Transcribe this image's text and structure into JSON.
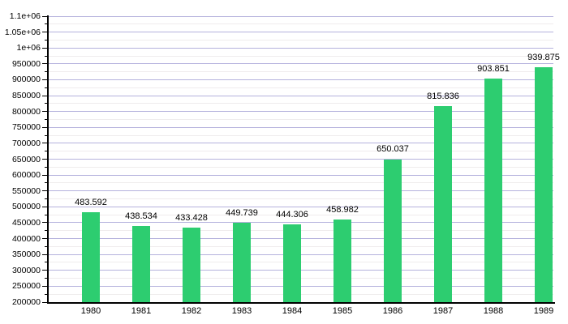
{
  "chart_data": {
    "type": "bar",
    "title": "",
    "xlabel": "",
    "ylabel": "",
    "categories": [
      "1980",
      "1981",
      "1982",
      "1983",
      "1984",
      "1985",
      "1986",
      "1987",
      "1988",
      "1989"
    ],
    "values": [
      483592,
      438534,
      433428,
      449739,
      444306,
      458982,
      650037,
      815836,
      903851,
      939875
    ],
    "bar_labels": [
      "483.592",
      "438.534",
      "433.428",
      "449.739",
      "444.306",
      "458.982",
      "650.037",
      "815.836",
      "903.851",
      "939.875"
    ],
    "ylim": [
      200000,
      1100000
    ],
    "y_major_step": 50000,
    "y_minor_step": 25000,
    "y_tick_labels": [
      "200000",
      "250000",
      "300000",
      "350000",
      "400000",
      "450000",
      "500000",
      "550000",
      "600000",
      "650000",
      "700000",
      "750000",
      "800000",
      "850000",
      "900000",
      "950000",
      "1e+06",
      "1.05e+06",
      "1.1e+06"
    ],
    "grid": "on",
    "legend": "none",
    "colors": {
      "bar": "#2dcd70",
      "major_grid": "#b5b2dd",
      "minor_grid": "#efeced",
      "axis": "#000000",
      "text": "#000000",
      "background": "#ffffff"
    }
  }
}
